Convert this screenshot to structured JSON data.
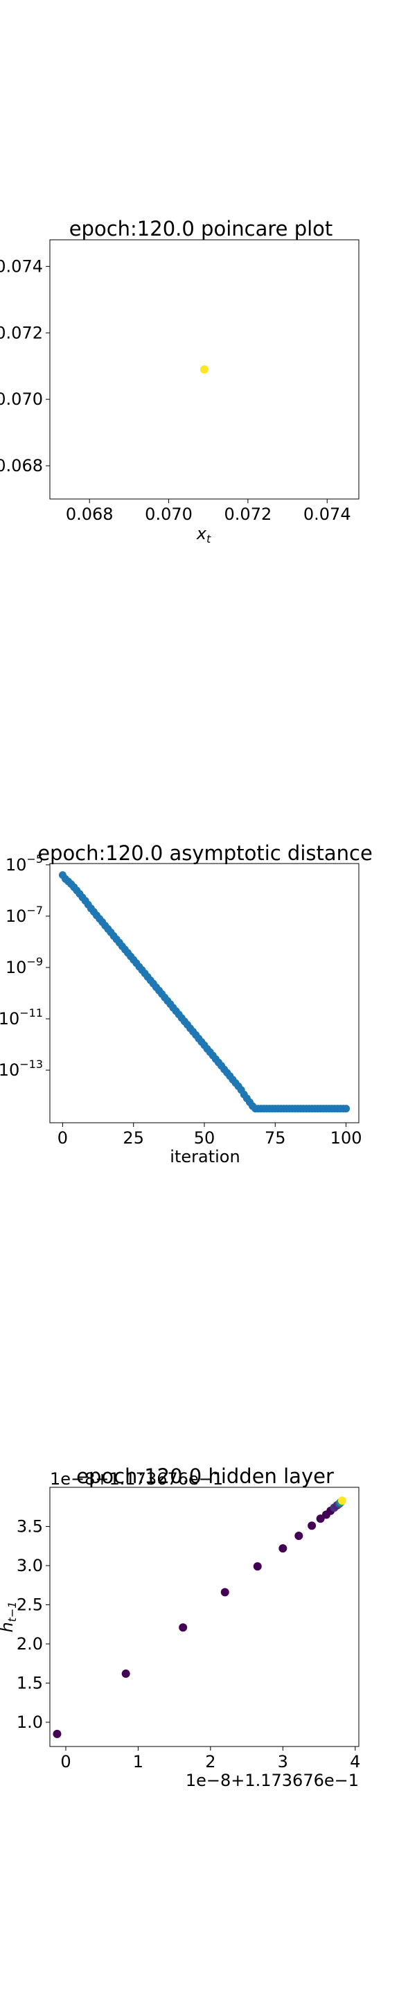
{
  "chart_data": [
    {
      "type": "scatter",
      "title": "epoch:120.0 poincare plot",
      "xlabel": "x_t",
      "ylabel": "",
      "xlim": [
        0.067,
        0.0748
      ],
      "ylim": [
        0.067,
        0.0748
      ],
      "xticks": [
        0.068,
        0.07,
        0.072,
        0.074
      ],
      "yticks": [
        0.068,
        0.07,
        0.072,
        0.074
      ],
      "xtick_labels": [
        "0.068",
        "0.070",
        "0.072",
        "0.074"
      ],
      "ytick_labels": [
        "0.068",
        "0.070",
        "0.072",
        "0.074"
      ],
      "points": [
        {
          "x": 0.0709,
          "y": 0.0709
        }
      ],
      "point_color": "#fde725",
      "grid": false
    },
    {
      "type": "scatter",
      "title": "epoch:120.0 asymptotic distance",
      "xlabel": "iteration",
      "ylabel": "",
      "yscale": "log",
      "xlim": [
        -4.5,
        104.5
      ],
      "ylim_log10": [
        -15.05,
        -4.95
      ],
      "xticks": [
        0,
        25,
        50,
        75,
        100
      ],
      "xtick_labels": [
        "0",
        "25",
        "50",
        "75",
        "100"
      ],
      "yticks_log10": [
        -13,
        -11,
        -9,
        -7,
        -5
      ],
      "ytick_labels": [
        "10",
        "10",
        "10",
        "10",
        "10"
      ],
      "ytick_exponents": [
        "−13",
        "−11",
        "−9",
        "−7",
        "−5"
      ],
      "description_of_series": "log10 distance decreases linearly from about -5.4 at iteration 0 to about -14.5 at iteration 68, then stays flat at -14.5 through iteration 100",
      "x": [
        0,
        1,
        2,
        3,
        4,
        5,
        6,
        7,
        8,
        9,
        10,
        11,
        12,
        13,
        14,
        15,
        16,
        17,
        18,
        19,
        20,
        21,
        22,
        23,
        24,
        25,
        26,
        27,
        28,
        29,
        30,
        31,
        32,
        33,
        34,
        35,
        36,
        37,
        38,
        39,
        40,
        41,
        42,
        43,
        44,
        45,
        46,
        47,
        48,
        49,
        50,
        51,
        52,
        53,
        54,
        55,
        56,
        57,
        58,
        59,
        60,
        61,
        62,
        63,
        64,
        65,
        66,
        67,
        68,
        69,
        70,
        71,
        72,
        73,
        74,
        75,
        76,
        77,
        78,
        79,
        80,
        81,
        82,
        83,
        84,
        85,
        86,
        87,
        88,
        89,
        90,
        91,
        92,
        93,
        94,
        95,
        96,
        97,
        98,
        99,
        100
      ],
      "y_log10": [
        -5.4,
        -5.55,
        -5.65,
        -5.75,
        -5.87,
        -6.0,
        -6.13,
        -6.27,
        -6.4,
        -6.55,
        -6.7,
        -6.83,
        -6.97,
        -7.1,
        -7.23,
        -7.37,
        -7.5,
        -7.63,
        -7.77,
        -7.9,
        -8.03,
        -8.17,
        -8.3,
        -8.43,
        -8.57,
        -8.7,
        -8.83,
        -8.97,
        -9.1,
        -9.23,
        -9.37,
        -9.5,
        -9.63,
        -9.77,
        -9.9,
        -10.03,
        -10.17,
        -10.3,
        -10.43,
        -10.57,
        -10.7,
        -10.83,
        -10.97,
        -11.1,
        -11.23,
        -11.37,
        -11.5,
        -11.63,
        -11.77,
        -11.9,
        -12.03,
        -12.17,
        -12.3,
        -12.43,
        -12.57,
        -12.7,
        -12.83,
        -12.97,
        -13.1,
        -13.23,
        -13.37,
        -13.5,
        -13.63,
        -13.77,
        -13.95,
        -14.1,
        -14.25,
        -14.4,
        -14.5,
        -14.5,
        -14.5,
        -14.5,
        -14.5,
        -14.5,
        -14.5,
        -14.5,
        -14.5,
        -14.5,
        -14.5,
        -14.5,
        -14.5,
        -14.5,
        -14.5,
        -14.5,
        -14.5,
        -14.5,
        -14.5,
        -14.5,
        -14.5,
        -14.5,
        -14.5,
        -14.5,
        -14.5,
        -14.5,
        -14.5,
        -14.5,
        -14.5,
        -14.5,
        -14.5,
        -14.5,
        -14.5
      ],
      "point_color": "#1f77b4",
      "grid": false
    },
    {
      "type": "scatter",
      "title": "epoch:120.0 hidden layer",
      "xlabel": "",
      "ylabel": "h_{t-1}",
      "x_offset_text": "1e−8+1.173676e−1",
      "y_offset_text": "1e−8+1.173676e−1",
      "xlim": [
        -0.22,
        4.05
      ],
      "ylim": [
        0.69,
        4.0
      ],
      "xticks": [
        0,
        1,
        2,
        3,
        4
      ],
      "xtick_labels": [
        "0",
        "1",
        "2",
        "3",
        "4"
      ],
      "yticks": [
        1.0,
        1.5,
        2.0,
        2.5,
        3.0,
        3.5
      ],
      "ytick_labels": [
        "1.0",
        "1.5",
        "2.0",
        "2.5",
        "3.0",
        "3.5"
      ],
      "x": [
        -0.12,
        0.83,
        1.62,
        2.2,
        2.65,
        3.0,
        3.22,
        3.4,
        3.52,
        3.6,
        3.66,
        3.71,
        3.75,
        3.78,
        3.8,
        3.82
      ],
      "y": [
        0.85,
        1.62,
        2.21,
        2.66,
        2.99,
        3.22,
        3.38,
        3.51,
        3.6,
        3.65,
        3.7,
        3.74,
        3.77,
        3.79,
        3.81,
        3.83
      ],
      "point_colors": [
        "#440154",
        "#440154",
        "#440154",
        "#440154",
        "#440154",
        "#440154",
        "#440154",
        "#440154",
        "#440154",
        "#440154",
        "#440154",
        "#46327e",
        "#482878",
        "#3b528b",
        "#21918c",
        "#fde725"
      ],
      "grid": false
    }
  ]
}
